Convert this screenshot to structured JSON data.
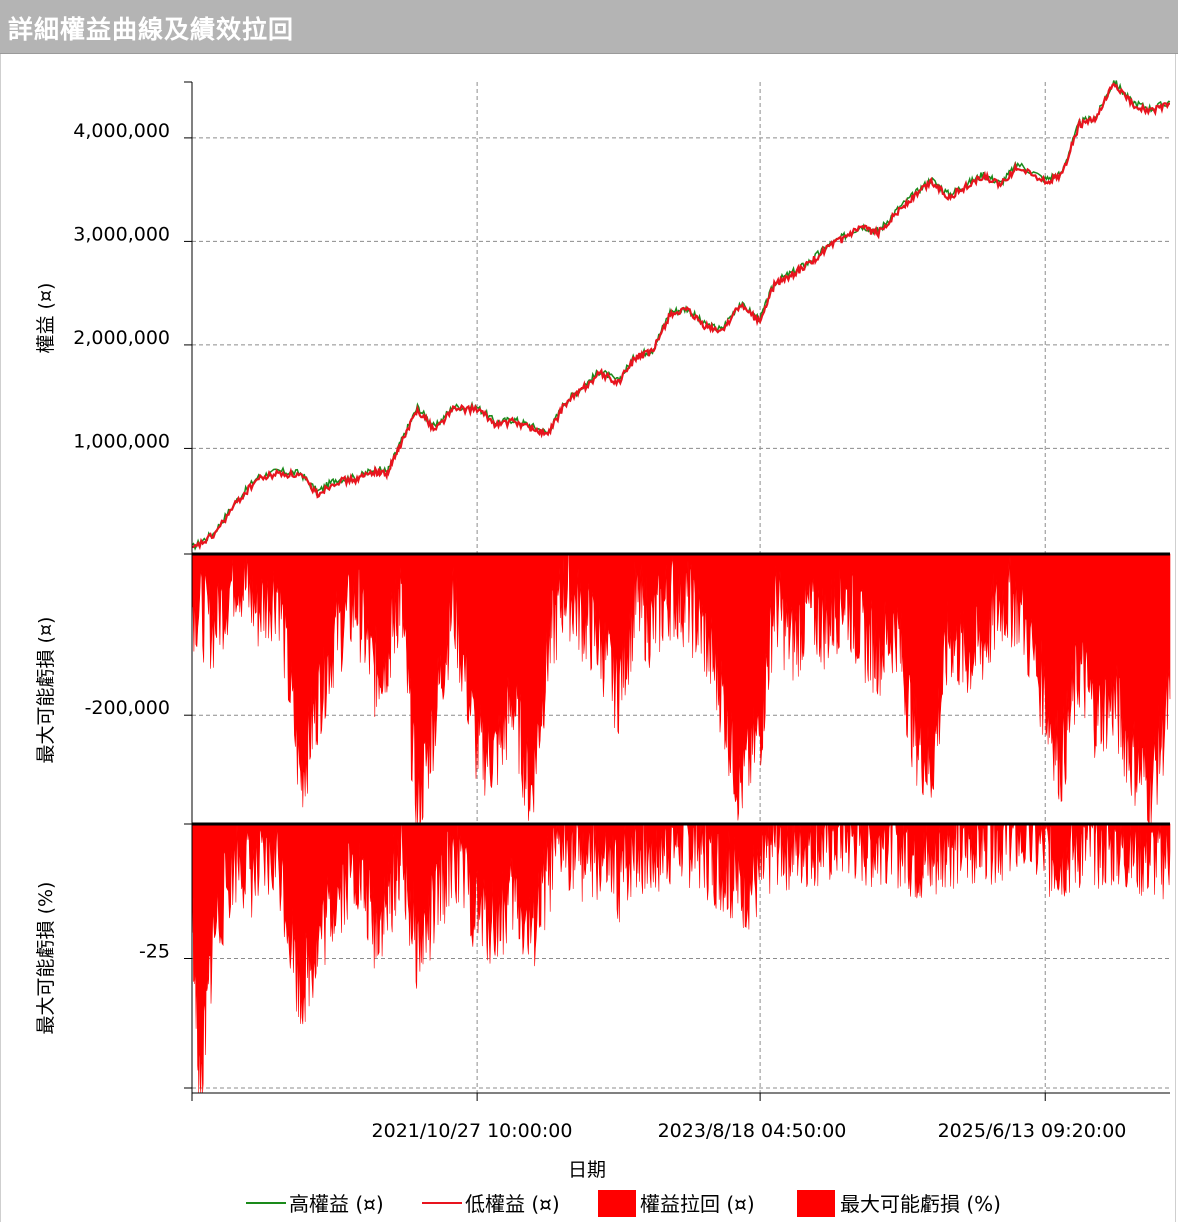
{
  "title": "詳細權益曲線及績效拉回",
  "colors": {
    "high_equity": "#1a8a1a",
    "low_equity": "#e8141e",
    "drawdown": "#ff0000",
    "grid": "#8c8c8c",
    "title_bg": "#b4b4b4"
  },
  "chart_data": [
    {
      "type": "line",
      "panel": "equity",
      "ylabel": "權益 (¤)",
      "yticks": [
        1000000,
        2000000,
        3000000,
        4000000
      ],
      "ytick_labels": [
        "1,000,000",
        "2,000,000",
        "3,000,000",
        "4,000,000"
      ],
      "ylim": [
        -20000,
        4540000
      ],
      "grid": true,
      "series": [
        {
          "name": "高權益 (¤)",
          "color": "#1a8a1a",
          "x": [
            "2020-01-01",
            "2020-02-20",
            "2020-04-15",
            "2020-06-01",
            "2020-07-20",
            "2020-09-10",
            "2020-10-20",
            "2020-12-01",
            "2021-01-20",
            "2021-03-01",
            "2021-04-01",
            "2021-05-01",
            "2021-06-10",
            "2021-07-20",
            "2021-09-01",
            "2021-10-27",
            "2021-12-10",
            "2022-01-20",
            "2022-03-01",
            "2022-04-10",
            "2022-05-20",
            "2022-07-01",
            "2022-08-10",
            "2022-09-20",
            "2022-11-01",
            "2022-12-10",
            "2023-01-20",
            "2023-03-01",
            "2023-04-10",
            "2023-05-20",
            "2023-07-01",
            "2023-08-18",
            "2023-09-20",
            "2023-11-01",
            "2023-12-10",
            "2024-01-20",
            "2024-03-01",
            "2024-04-10",
            "2024-05-20",
            "2024-07-01",
            "2024-08-10",
            "2024-09-20",
            "2024-11-01",
            "2024-12-10",
            "2025-01-20",
            "2025-03-01",
            "2025-04-10",
            "2025-06-13",
            "2025-07-20",
            "2025-09-01",
            "2025-10-10",
            "2025-11-20",
            "2025-12-31",
            "2026-02-15",
            "2026-03-31"
          ],
          "y": [
            40000,
            180000,
            500000,
            720000,
            780000,
            760000,
            580000,
            700000,
            720000,
            800000,
            780000,
            1050000,
            1400000,
            1200000,
            1400000,
            1400000,
            1250000,
            1280000,
            1220000,
            1150000,
            1450000,
            1600000,
            1750000,
            1650000,
            1900000,
            1950000,
            2320000,
            2350000,
            2200000,
            2150000,
            2400000,
            2250000,
            2600000,
            2700000,
            2800000,
            2950000,
            3050000,
            3150000,
            3100000,
            3300000,
            3450000,
            3600000,
            3450000,
            3550000,
            3650000,
            3560000,
            3750000,
            3600000,
            3650000,
            4150000,
            4200000,
            4550000,
            4350000,
            4280000,
            4350000
          ]
        },
        {
          "name": "低權益 (¤)",
          "color": "#e8141e",
          "x": [
            "2020-01-01",
            "2020-02-20",
            "2020-04-15",
            "2020-06-01",
            "2020-07-20",
            "2020-09-10",
            "2020-10-20",
            "2020-12-01",
            "2021-01-20",
            "2021-03-01",
            "2021-04-01",
            "2021-05-01",
            "2021-06-10",
            "2021-07-20",
            "2021-09-01",
            "2021-10-27",
            "2021-12-10",
            "2022-01-20",
            "2022-03-01",
            "2022-04-10",
            "2022-05-20",
            "2022-07-01",
            "2022-08-10",
            "2022-09-20",
            "2022-11-01",
            "2022-12-10",
            "2023-01-20",
            "2023-03-01",
            "2023-04-10",
            "2023-05-20",
            "2023-07-01",
            "2023-08-18",
            "2023-09-20",
            "2023-11-01",
            "2023-12-10",
            "2024-01-20",
            "2024-03-01",
            "2024-04-10",
            "2024-05-20",
            "2024-07-01",
            "2024-08-10",
            "2024-09-20",
            "2024-11-01",
            "2024-12-10",
            "2025-01-20",
            "2025-03-01",
            "2025-04-10",
            "2025-06-13",
            "2025-07-20",
            "2025-09-01",
            "2025-10-10",
            "2025-11-20",
            "2025-12-31",
            "2026-02-15",
            "2026-03-31"
          ],
          "y": [
            20000,
            160000,
            480000,
            700000,
            760000,
            740000,
            560000,
            680000,
            700000,
            780000,
            760000,
            1030000,
            1380000,
            1180000,
            1380000,
            1380000,
            1230000,
            1260000,
            1200000,
            1130000,
            1430000,
            1580000,
            1730000,
            1630000,
            1880000,
            1930000,
            2300000,
            2330000,
            2180000,
            2130000,
            2380000,
            2230000,
            2580000,
            2680000,
            2780000,
            2930000,
            3030000,
            3130000,
            3080000,
            3280000,
            3430000,
            3580000,
            3430000,
            3530000,
            3630000,
            3540000,
            3730000,
            3580000,
            3630000,
            4130000,
            4180000,
            4530000,
            4330000,
            4260000,
            4330000
          ]
        }
      ]
    },
    {
      "type": "area",
      "panel": "drawdown_value",
      "ylabel": "最大可能虧損 (¤)",
      "yticks": [
        -200000
      ],
      "ytick_labels": [
        "-200,000"
      ],
      "ylim": [
        -335000,
        0
      ],
      "grid": true,
      "series": [
        {
          "name": "權益拉回 (¤)",
          "color": "#ff0000",
          "x": [
            "2020-01-01",
            "2020-02-20",
            "2020-04-15",
            "2020-06-01",
            "2020-07-20",
            "2020-09-10",
            "2020-10-20",
            "2020-12-01",
            "2021-01-20",
            "2021-03-01",
            "2021-04-01",
            "2021-05-01",
            "2021-06-10",
            "2021-07-20",
            "2021-09-01",
            "2021-10-27",
            "2021-12-10",
            "2022-01-20",
            "2022-03-01",
            "2022-04-10",
            "2022-05-20",
            "2022-07-01",
            "2022-08-10",
            "2022-09-20",
            "2022-11-01",
            "2022-12-10",
            "2023-01-20",
            "2023-03-01",
            "2023-04-10",
            "2023-05-20",
            "2023-07-01",
            "2023-08-18",
            "2023-09-20",
            "2023-11-01",
            "2023-12-10",
            "2024-01-20",
            "2024-03-01",
            "2024-04-10",
            "2024-05-20",
            "2024-07-01",
            "2024-08-10",
            "2024-09-20",
            "2024-11-01",
            "2024-12-10",
            "2025-01-20",
            "2025-03-01",
            "2025-04-10",
            "2025-06-13",
            "2025-07-20",
            "2025-09-01",
            "2025-10-10",
            "2025-11-20",
            "2025-12-31",
            "2026-02-15",
            "2026-03-31"
          ],
          "y": [
            -60000,
            -90000,
            -20000,
            -70000,
            -40000,
            -280000,
            -180000,
            -100000,
            -60000,
            -150000,
            -120000,
            -50000,
            -320000,
            -200000,
            -60000,
            -240000,
            -250000,
            -180000,
            -300000,
            -120000,
            -40000,
            -80000,
            -110000,
            -170000,
            -60000,
            -90000,
            -50000,
            -60000,
            -100000,
            -170000,
            -290000,
            -220000,
            -60000,
            -110000,
            -70000,
            -90000,
            -50000,
            -100000,
            -120000,
            -90000,
            -220000,
            -270000,
            -100000,
            -130000,
            -110000,
            -60000,
            -60000,
            -180000,
            -260000,
            -140000,
            -200000,
            -180000,
            -250000,
            -290000,
            -180000
          ]
        }
      ]
    },
    {
      "type": "area",
      "panel": "drawdown_percent",
      "ylabel": "最大可能虧損 (%)",
      "yticks": [
        -25
      ],
      "ytick_labels": [
        "-25"
      ],
      "ylim": [
        -50,
        0
      ],
      "grid": true,
      "series": [
        {
          "name": "最大可能虧損 (%)",
          "color": "#ff0000",
          "x": [
            "2020-01-01",
            "2020-01-20",
            "2020-02-20",
            "2020-04-15",
            "2020-06-01",
            "2020-07-20",
            "2020-09-10",
            "2020-10-20",
            "2020-12-01",
            "2021-01-20",
            "2021-03-01",
            "2021-04-01",
            "2021-05-01",
            "2021-06-10",
            "2021-07-20",
            "2021-09-01",
            "2021-10-27",
            "2021-12-10",
            "2022-01-20",
            "2022-03-01",
            "2022-04-10",
            "2022-05-20",
            "2022-07-01",
            "2022-08-10",
            "2022-09-20",
            "2022-11-01",
            "2022-12-10",
            "2023-01-20",
            "2023-03-01",
            "2023-04-10",
            "2023-05-20",
            "2023-07-01",
            "2023-08-18",
            "2023-09-20",
            "2023-11-01",
            "2023-12-10",
            "2024-01-20",
            "2024-03-01",
            "2024-04-10",
            "2024-05-20",
            "2024-07-01",
            "2024-08-10",
            "2024-09-20",
            "2024-11-01",
            "2024-12-10",
            "2025-01-20",
            "2025-03-01",
            "2025-04-10",
            "2025-06-13",
            "2025-07-20",
            "2025-09-01",
            "2025-10-10",
            "2025-11-20",
            "2025-12-31",
            "2026-02-15",
            "2026-03-31"
          ],
          "y": [
            -15,
            -50,
            -20,
            -6,
            -10,
            -6,
            -31,
            -22,
            -13,
            -8,
            -19,
            -15,
            -6,
            -23,
            -16,
            -5,
            -17,
            -18,
            -13,
            -21,
            -10,
            -3,
            -6,
            -7,
            -11,
            -4,
            -6,
            -3,
            -3,
            -5,
            -8,
            -12,
            -10,
            -3,
            -4,
            -3,
            -3,
            -2,
            -3,
            -4,
            -3,
            -6,
            -7,
            -3,
            -4,
            -3,
            -2,
            -2,
            -5,
            -6,
            -4,
            -4,
            -4,
            -5,
            -6,
            -5
          ]
        }
      ]
    }
  ],
  "x_axis": {
    "label": "日期",
    "ticks": [
      "2021/10/27 10:00:00",
      "2023/8/18 04:50:00",
      "2025/6/13 09:20:00"
    ],
    "tick_dates": [
      "2021-10-27",
      "2023-08-18",
      "2025-06-13"
    ]
  },
  "legend": {
    "placement": "bottom",
    "items": [
      "高權益 (¤)",
      "低權益 (¤)",
      "權益拉回 (¤)",
      "最大可能虧損 (%)"
    ]
  }
}
